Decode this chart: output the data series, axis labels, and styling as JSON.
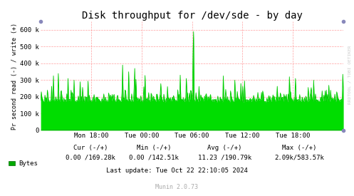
{
  "title": "Disk throughput for /dev/sde - by day",
  "ylabel": "Pr second read (-) / write (+)",
  "background_color": "#FFFFFF",
  "plot_bg_color": "#FFFFFF",
  "grid_color": "#FF8888",
  "line_color": "#00CC00",
  "fill_color": "#00DD00",
  "ylim": [
    0,
    650000
  ],
  "yticks": [
    0,
    100000,
    200000,
    300000,
    400000,
    500000,
    600000
  ],
  "ytick_labels": [
    "0",
    "100 k",
    "200 k",
    "300 k",
    "400 k",
    "500 k",
    "600 k"
  ],
  "xtick_labels": [
    "Mon 18:00",
    "Tue 00:00",
    "Tue 06:00",
    "Tue 12:00",
    "Tue 18:00"
  ],
  "xtick_positions": [
    0.1667,
    0.3333,
    0.5,
    0.6667,
    0.8333
  ],
  "legend_label": "Bytes",
  "legend_color": "#00AA00",
  "cur_label": "Cur (-/+)",
  "cur_value": "0.00 /169.28k",
  "min_label": "Min (-/+)",
  "min_value": "0.00 /142.51k",
  "avg_label": "Avg (-/+)",
  "avg_value": "11.23 /190.79k",
  "max_label": "Max (-/+)",
  "max_value": "2.09k/583.57k",
  "last_update": "Last update: Tue Oct 22 22:10:05 2024",
  "munin_version": "Munin 2.0.73",
  "watermark": "RRDTOOL / TOBI OETIKER",
  "title_fontsize": 10,
  "axis_fontsize": 6.5,
  "stats_fontsize": 6.5,
  "num_points": 500,
  "base_level": 170000,
  "spike_at_tue06": 590000
}
